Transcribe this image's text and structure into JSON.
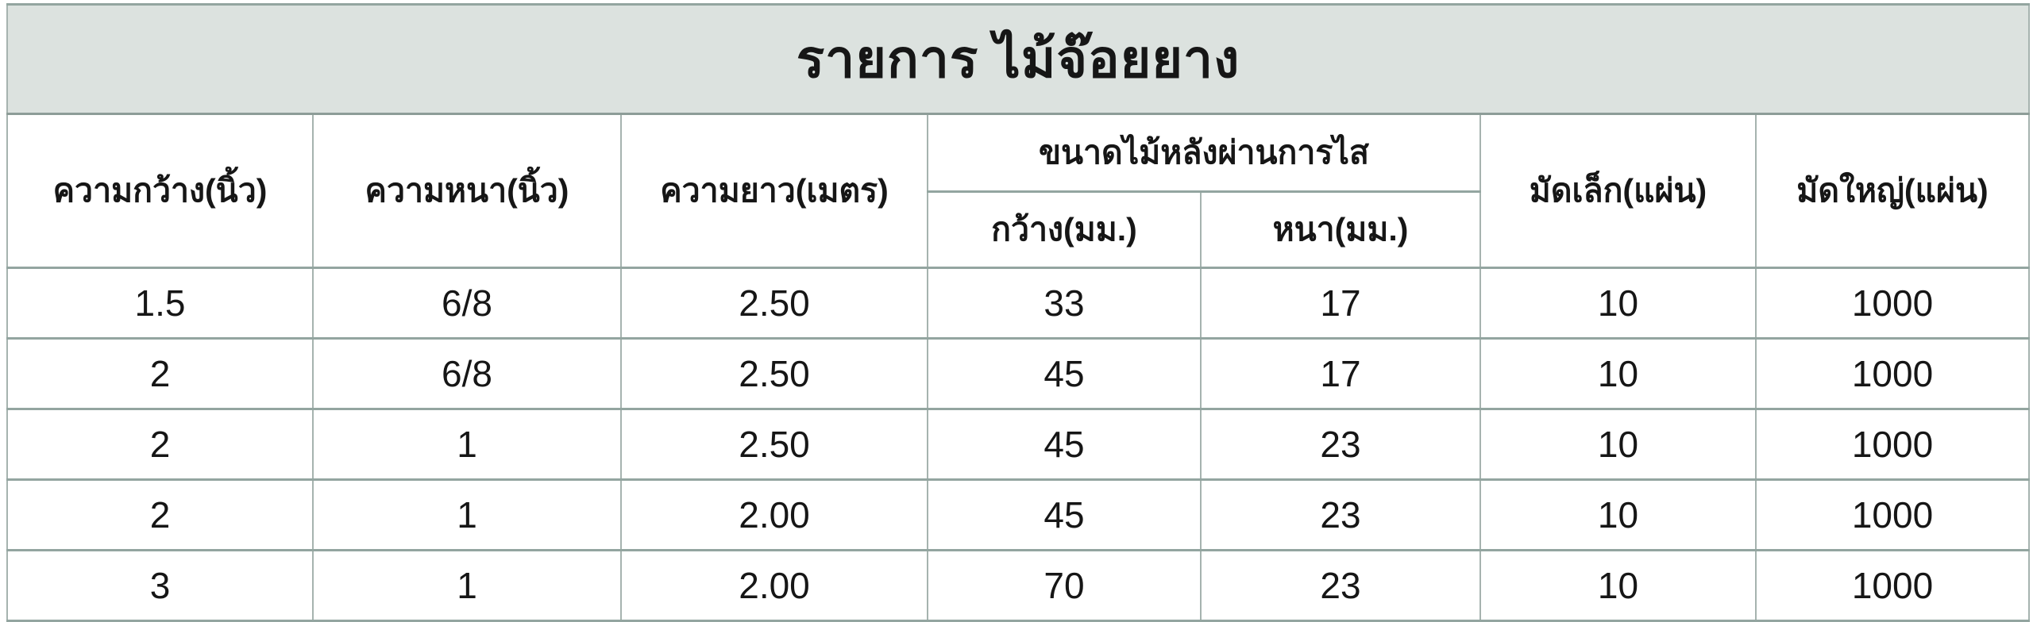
{
  "title": "รายการ ไม้จ๊อยยาง",
  "colors": {
    "title_bg": "#dce2df",
    "border": "#a6b3af",
    "border_strong": "#93a5a0",
    "outer_border": "#8d9d98",
    "text": "#161616",
    "cell_bg": "#ffffff"
  },
  "table": {
    "headers": {
      "width_in": "ความกว้าง(นิ้ว)",
      "thick_in": "ความหนา(นิ้ว)",
      "length_m": "ความยาว(เมตร)",
      "planed_group": "ขนาดไม้หลังผ่านการไส",
      "planed_width_mm": "กว้าง(มม.)",
      "planed_thick_mm": "หนา(มม.)",
      "small_bundle": "มัดเล็ก(แผ่น)",
      "large_bundle": "มัดใหญ่(แผ่น)"
    },
    "rows": [
      [
        "1.5",
        "6/8",
        "2.50",
        "33",
        "17",
        "10",
        "1000"
      ],
      [
        "2",
        "6/8",
        "2.50",
        "45",
        "17",
        "10",
        "1000"
      ],
      [
        "2",
        "1",
        "2.50",
        "45",
        "23",
        "10",
        "1000"
      ],
      [
        "2",
        "1",
        "2.00",
        "45",
        "23",
        "10",
        "1000"
      ],
      [
        "3",
        "1",
        "2.00",
        "70",
        "23",
        "10",
        "1000"
      ]
    ]
  }
}
